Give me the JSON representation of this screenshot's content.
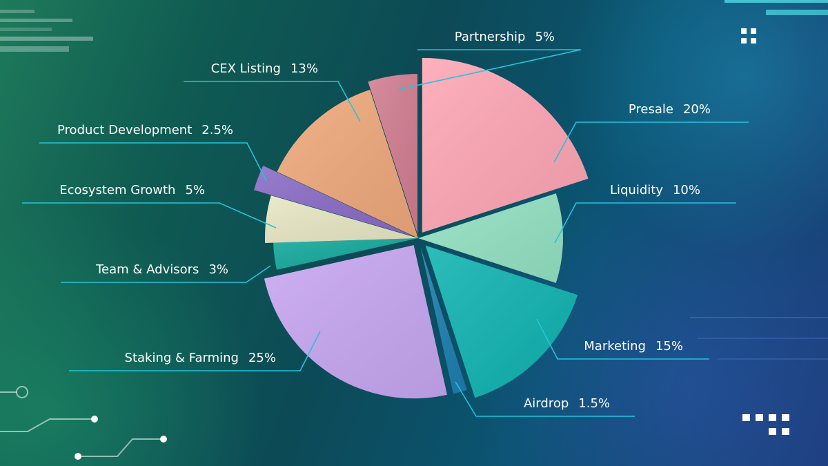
{
  "colors": {
    "leader": "#22c5dc",
    "segments": [
      "#ffa6b5",
      "#94e2c3",
      "#10b4b2",
      "#1c7fb0",
      "#c8a7f2",
      "#13a89c",
      "#e8e7c4",
      "#8a6cc7",
      "#f0a97c",
      "#d27e91"
    ]
  },
  "chart_data": {
    "type": "pie",
    "slices": [
      {
        "label": "Presale",
        "value": "20%",
        "share": 20
      },
      {
        "label": "Liquidity",
        "value": "10%",
        "share": 10
      },
      {
        "label": "Marketing",
        "value": "15%",
        "share": 15
      },
      {
        "label": "Airdrop",
        "value": "1.5%",
        "share": 1.5
      },
      {
        "label": "Staking & Farming",
        "value": "25%",
        "share": 25
      },
      {
        "label": "Team & Advisors",
        "value": "3%",
        "share": 3
      },
      {
        "label": "Ecosystem Growth",
        "value": "5%",
        "share": 5
      },
      {
        "label": "Product Development",
        "value": "2.5%",
        "share": 2.5
      },
      {
        "label": "CEX Listing",
        "value": "13%",
        "share": 13
      },
      {
        "label": "Partnership",
        "value": "5%",
        "share": 5
      }
    ]
  }
}
